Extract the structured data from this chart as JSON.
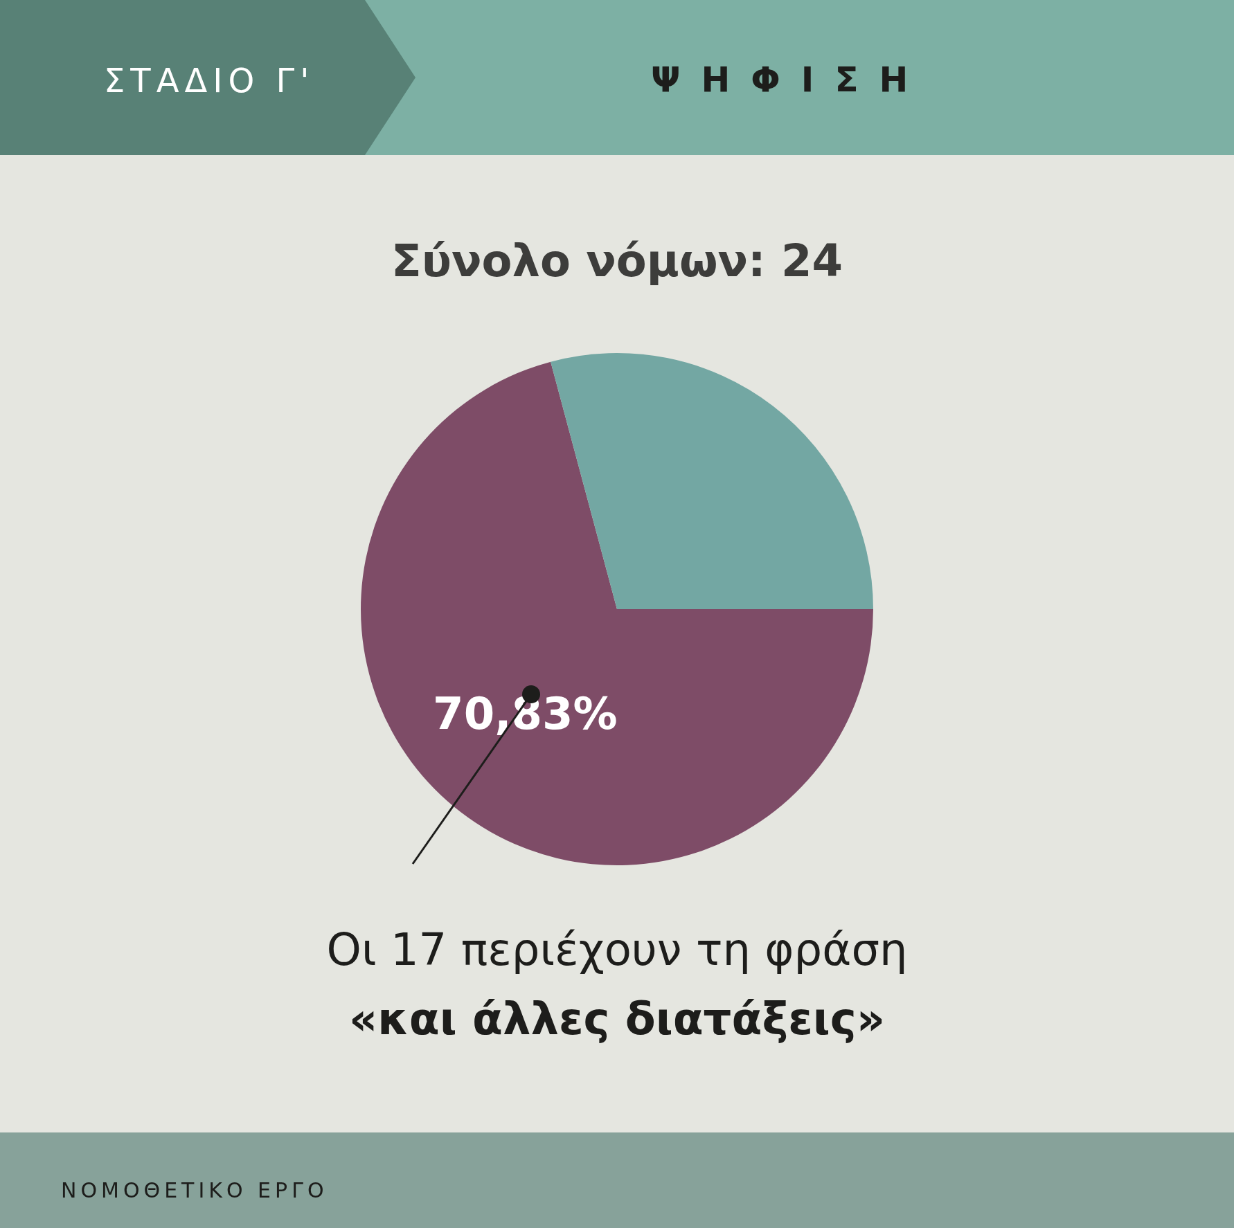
{
  "chart_data": {
    "type": "pie",
    "title": "Σύνολο νόμων: 24",
    "categories": [
      null,
      null
    ],
    "values": [
      70.83,
      29.17
    ],
    "colors": [
      "#7e4c67",
      "#73a7a3"
    ],
    "value_labels": [
      "70,83%",
      null
    ],
    "annotations": [
      "ΣΤΑΔΙΟ Γ'",
      "ΨΗΦΙΣΗ",
      "Οι 17 περιέχουν τη φράση",
      "«και άλλες διατάξεις»",
      "ΝΟΜΟΘΕΤΙΚΟ ΕΡΓΟ"
    ],
    "legend": false
  }
}
